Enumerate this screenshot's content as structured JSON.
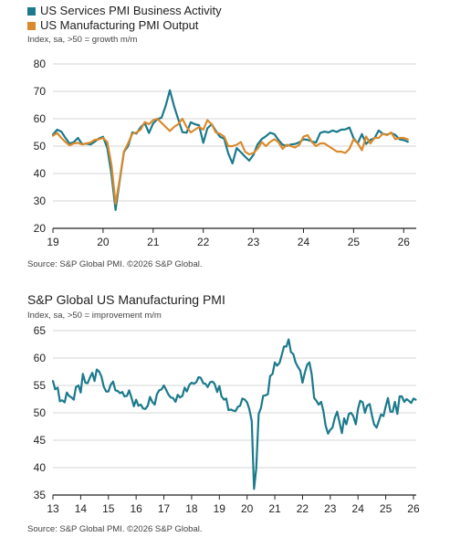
{
  "colors": {
    "services": "#1b7a8c",
    "manufacturing": "#d98a2b",
    "grid": "#c8c8c8",
    "axis": "#222222"
  },
  "chart_data": [
    {
      "type": "line",
      "legend": [
        "US Services PMI Business Activity",
        "US Manufacturing PMI Output"
      ],
      "subtitle": "Index, sa, >50 = growth m/m",
      "source": "Source: S&P Global PMI. ©2026 S&P Global.",
      "xlim": [
        2019.0,
        2026.25
      ],
      "ylim": [
        20,
        80
      ],
      "yticks": [
        20,
        30,
        40,
        50,
        60,
        70,
        80
      ],
      "xticks": [
        {
          "value": 2019.0,
          "label": "19"
        },
        {
          "value": 2020.0,
          "label": "20"
        },
        {
          "value": 2021.0,
          "label": "21"
        },
        {
          "value": 2022.0,
          "label": "22"
        },
        {
          "value": 2023.0,
          "label": "23"
        },
        {
          "value": 2024.0,
          "label": "24"
        },
        {
          "value": 2025.0,
          "label": "25"
        },
        {
          "value": 2026.0,
          "label": "26"
        }
      ],
      "grid": true,
      "series": [
        {
          "name": "US Services PMI Business Activity",
          "color": "#1b7a8c",
          "x": [
            2019.0,
            2019.083,
            2019.167,
            2019.25,
            2019.333,
            2019.417,
            2019.5,
            2019.583,
            2019.667,
            2019.75,
            2019.833,
            2019.917,
            2020.0,
            2020.083,
            2020.167,
            2020.25,
            2020.333,
            2020.417,
            2020.5,
            2020.583,
            2020.667,
            2020.75,
            2020.833,
            2020.917,
            2021.0,
            2021.083,
            2021.167,
            2021.25,
            2021.333,
            2021.417,
            2021.5,
            2021.583,
            2021.667,
            2021.75,
            2021.833,
            2021.917,
            2022.0,
            2022.083,
            2022.167,
            2022.25,
            2022.333,
            2022.417,
            2022.5,
            2022.583,
            2022.667,
            2022.75,
            2022.833,
            2022.917,
            2023.0,
            2023.083,
            2023.167,
            2023.25,
            2023.333,
            2023.417,
            2023.5,
            2023.583,
            2023.667,
            2023.75,
            2023.833,
            2023.917,
            2024.0,
            2024.083,
            2024.167,
            2024.25,
            2024.333,
            2024.417,
            2024.5,
            2024.583,
            2024.667,
            2024.75,
            2024.833,
            2024.917,
            2025.0,
            2025.083,
            2025.167,
            2025.25,
            2025.333,
            2025.417,
            2025.5,
            2025.583,
            2025.667,
            2025.75,
            2025.833,
            2025.917,
            2026.0,
            2026.083
          ],
          "values": [
            54.2,
            56.0,
            55.3,
            53.0,
            50.9,
            51.5,
            53.0,
            50.7,
            50.9,
            50.6,
            51.6,
            52.8,
            53.4,
            49.4,
            39.8,
            26.7,
            37.5,
            47.9,
            50.0,
            55.0,
            54.6,
            56.9,
            58.4,
            54.8,
            58.3,
            59.8,
            60.4,
            64.7,
            70.4,
            64.6,
            59.9,
            55.1,
            54.9,
            58.7,
            58.0,
            57.6,
            51.2,
            56.5,
            58.0,
            55.6,
            53.4,
            52.7,
            47.3,
            43.7,
            49.3,
            47.8,
            46.2,
            44.7,
            46.8,
            50.6,
            52.6,
            53.6,
            54.9,
            54.4,
            52.3,
            50.5,
            50.1,
            50.6,
            50.8,
            51.4,
            52.5,
            52.3,
            51.7,
            51.3,
            54.8,
            55.3,
            55.0,
            55.7,
            55.2,
            56.0,
            56.1,
            56.8,
            52.9,
            51.0,
            54.4,
            50.8,
            52.3,
            52.9,
            55.7,
            54.5,
            54.2,
            54.8,
            54.1,
            52.5,
            52.2,
            51.6
          ]
        },
        {
          "name": "US Manufacturing PMI Output",
          "color": "#d98a2b",
          "x": [
            2019.0,
            2019.083,
            2019.167,
            2019.25,
            2019.333,
            2019.417,
            2019.5,
            2019.583,
            2019.667,
            2019.75,
            2019.833,
            2019.917,
            2020.0,
            2020.083,
            2020.167,
            2020.25,
            2020.333,
            2020.417,
            2020.5,
            2020.583,
            2020.667,
            2020.75,
            2020.833,
            2020.917,
            2021.0,
            2021.083,
            2021.167,
            2021.25,
            2021.333,
            2021.417,
            2021.5,
            2021.583,
            2021.667,
            2021.75,
            2021.833,
            2021.917,
            2022.0,
            2022.083,
            2022.167,
            2022.25,
            2022.333,
            2022.417,
            2022.5,
            2022.583,
            2022.667,
            2022.75,
            2022.833,
            2022.917,
            2023.0,
            2023.083,
            2023.167,
            2023.25,
            2023.333,
            2023.417,
            2023.5,
            2023.583,
            2023.667,
            2023.75,
            2023.833,
            2023.917,
            2024.0,
            2024.083,
            2024.167,
            2024.25,
            2024.333,
            2024.417,
            2024.5,
            2024.583,
            2024.667,
            2024.75,
            2024.833,
            2024.917,
            2025.0,
            2025.083,
            2025.167,
            2025.25,
            2025.333,
            2025.417,
            2025.5,
            2025.583,
            2025.667,
            2025.75,
            2025.833,
            2025.917,
            2026.0,
            2026.083
          ],
          "values": [
            53.8,
            54.8,
            53.0,
            51.5,
            50.3,
            51.0,
            51.2,
            50.6,
            51.0,
            51.3,
            52.3,
            52.5,
            53.0,
            51.5,
            43.2,
            29.0,
            38.0,
            48.0,
            51.0,
            54.5,
            55.0,
            56.0,
            58.8,
            58.0,
            59.5,
            60.0,
            58.5,
            57.0,
            55.5,
            57.0,
            58.0,
            60.0,
            57.0,
            55.0,
            56.0,
            57.0,
            56.0,
            59.5,
            58.0,
            55.0,
            54.5,
            53.5,
            50.0,
            50.0,
            50.5,
            51.5,
            48.0,
            47.0,
            47.5,
            49.0,
            51.5,
            50.0,
            51.5,
            52.5,
            51.5,
            49.0,
            50.5,
            50.0,
            49.5,
            50.5,
            53.5,
            54.0,
            51.5,
            50.0,
            51.0,
            51.0,
            50.0,
            49.0,
            48.0,
            48.0,
            47.5,
            49.0,
            52.5,
            51.0,
            48.5,
            53.5,
            51.0,
            53.0,
            53.0,
            54.5,
            54.0,
            55.0,
            52.5,
            53.0,
            53.0,
            52.5
          ]
        }
      ]
    },
    {
      "type": "line",
      "title": "S&P Global US Manufacturing PMI",
      "subtitle": "Index, sa, >50 = improvement m/m",
      "source": "Source: S&P Global PMI. ©2026 S&P Global.",
      "xlim": [
        2013.0,
        2026.1
      ],
      "ylim": [
        35,
        65
      ],
      "yticks": [
        35,
        40,
        45,
        50,
        55,
        60,
        65
      ],
      "xticks": [
        {
          "value": 2013.0,
          "label": "13"
        },
        {
          "value": 2014.0,
          "label": "14"
        },
        {
          "value": 2015.0,
          "label": "15"
        },
        {
          "value": 2016.0,
          "label": "16"
        },
        {
          "value": 2017.0,
          "label": "17"
        },
        {
          "value": 2018.0,
          "label": "18"
        },
        {
          "value": 2019.0,
          "label": "19"
        },
        {
          "value": 2020.0,
          "label": "20"
        },
        {
          "value": 2021.0,
          "label": "21"
        },
        {
          "value": 2022.0,
          "label": "22"
        },
        {
          "value": 2023.0,
          "label": "23"
        },
        {
          "value": 2024.0,
          "label": "24"
        },
        {
          "value": 2025.0,
          "label": "25"
        },
        {
          "value": 2026.0,
          "label": "26"
        }
      ],
      "grid": true,
      "series": [
        {
          "color": "#1b7a8c",
          "x": [
            2013.0,
            2013.08,
            2013.17,
            2013.25,
            2013.33,
            2013.42,
            2013.5,
            2013.58,
            2013.67,
            2013.75,
            2013.83,
            2013.92,
            2014.0,
            2014.08,
            2014.17,
            2014.25,
            2014.33,
            2014.42,
            2014.5,
            2014.58,
            2014.67,
            2014.75,
            2014.83,
            2014.92,
            2015.0,
            2015.08,
            2015.17,
            2015.25,
            2015.33,
            2015.42,
            2015.5,
            2015.58,
            2015.67,
            2015.75,
            2015.83,
            2015.92,
            2016.0,
            2016.08,
            2016.17,
            2016.25,
            2016.33,
            2016.42,
            2016.5,
            2016.58,
            2016.67,
            2016.75,
            2016.83,
            2016.92,
            2017.0,
            2017.08,
            2017.17,
            2017.25,
            2017.33,
            2017.42,
            2017.5,
            2017.58,
            2017.67,
            2017.75,
            2017.83,
            2017.92,
            2018.0,
            2018.08,
            2018.17,
            2018.25,
            2018.33,
            2018.42,
            2018.5,
            2018.58,
            2018.67,
            2018.75,
            2018.83,
            2018.92,
            2019.0,
            2019.08,
            2019.17,
            2019.25,
            2019.33,
            2019.42,
            2019.5,
            2019.58,
            2019.67,
            2019.75,
            2019.83,
            2019.92,
            2020.0,
            2020.08,
            2020.17,
            2020.25,
            2020.33,
            2020.42,
            2020.5,
            2020.58,
            2020.67,
            2020.75,
            2020.83,
            2020.92,
            2021.0,
            2021.08,
            2021.17,
            2021.25,
            2021.33,
            2021.42,
            2021.5,
            2021.58,
            2021.67,
            2021.75,
            2021.83,
            2021.92,
            2022.0,
            2022.08,
            2022.17,
            2022.25,
            2022.33,
            2022.42,
            2022.5,
            2022.58,
            2022.67,
            2022.75,
            2022.83,
            2022.92,
            2023.0,
            2023.08,
            2023.17,
            2023.25,
            2023.33,
            2023.42,
            2023.5,
            2023.58,
            2023.67,
            2023.75,
            2023.83,
            2023.92,
            2024.0,
            2024.08,
            2024.17,
            2024.25,
            2024.33,
            2024.42,
            2024.5,
            2024.58,
            2024.67,
            2024.75,
            2024.83,
            2024.92,
            2025.0,
            2025.08,
            2025.17,
            2025.25,
            2025.33,
            2025.42,
            2025.5,
            2025.58,
            2025.67,
            2025.75,
            2025.83,
            2025.92,
            2026.0,
            2026.08
          ],
          "values": [
            55.8,
            54.3,
            54.6,
            52.1,
            52.3,
            51.9,
            53.7,
            53.1,
            52.8,
            52.4,
            54.7,
            55.0,
            53.7,
            57.1,
            55.5,
            55.4,
            56.4,
            57.3,
            55.8,
            57.9,
            57.5,
            56.6,
            54.8,
            53.9,
            53.9,
            55.1,
            55.7,
            54.1,
            54.0,
            53.6,
            53.8,
            53.0,
            53.1,
            54.1,
            52.8,
            51.2,
            52.4,
            51.3,
            51.5,
            50.8,
            50.7,
            51.3,
            52.9,
            52.0,
            51.5,
            53.4,
            54.1,
            54.3,
            55.0,
            54.2,
            53.3,
            52.8,
            52.7,
            52.0,
            53.3,
            52.8,
            53.1,
            54.6,
            53.9,
            55.1,
            55.5,
            55.3,
            55.6,
            56.5,
            56.4,
            55.4,
            55.3,
            54.7,
            55.6,
            55.7,
            55.3,
            53.8,
            54.9,
            53.0,
            52.4,
            52.6,
            50.5,
            50.6,
            50.4,
            50.3,
            51.1,
            51.3,
            52.6,
            52.4,
            51.9,
            50.7,
            48.5,
            36.1,
            39.8,
            49.8,
            50.9,
            53.1,
            53.2,
            53.4,
            56.7,
            57.1,
            59.2,
            58.6,
            59.1,
            60.5,
            62.1,
            62.1,
            63.4,
            61.1,
            60.7,
            59.2,
            58.4,
            57.7,
            55.5,
            57.3,
            58.8,
            59.2,
            57.0,
            52.7,
            52.2,
            51.5,
            52.0,
            50.4,
            47.7,
            46.2,
            46.9,
            47.3,
            49.2,
            50.2,
            48.4,
            46.3,
            49.0,
            47.9,
            49.8,
            50.0,
            49.4,
            47.9,
            50.7,
            52.2,
            51.9,
            50.0,
            51.3,
            51.6,
            49.6,
            47.9,
            47.3,
            48.5,
            49.7,
            49.4,
            51.2,
            52.7,
            50.2,
            50.2,
            52.0,
            49.8,
            53.0,
            53.0,
            52.0,
            52.5,
            52.2,
            51.8,
            52.6,
            52.4
          ]
        }
      ]
    }
  ]
}
